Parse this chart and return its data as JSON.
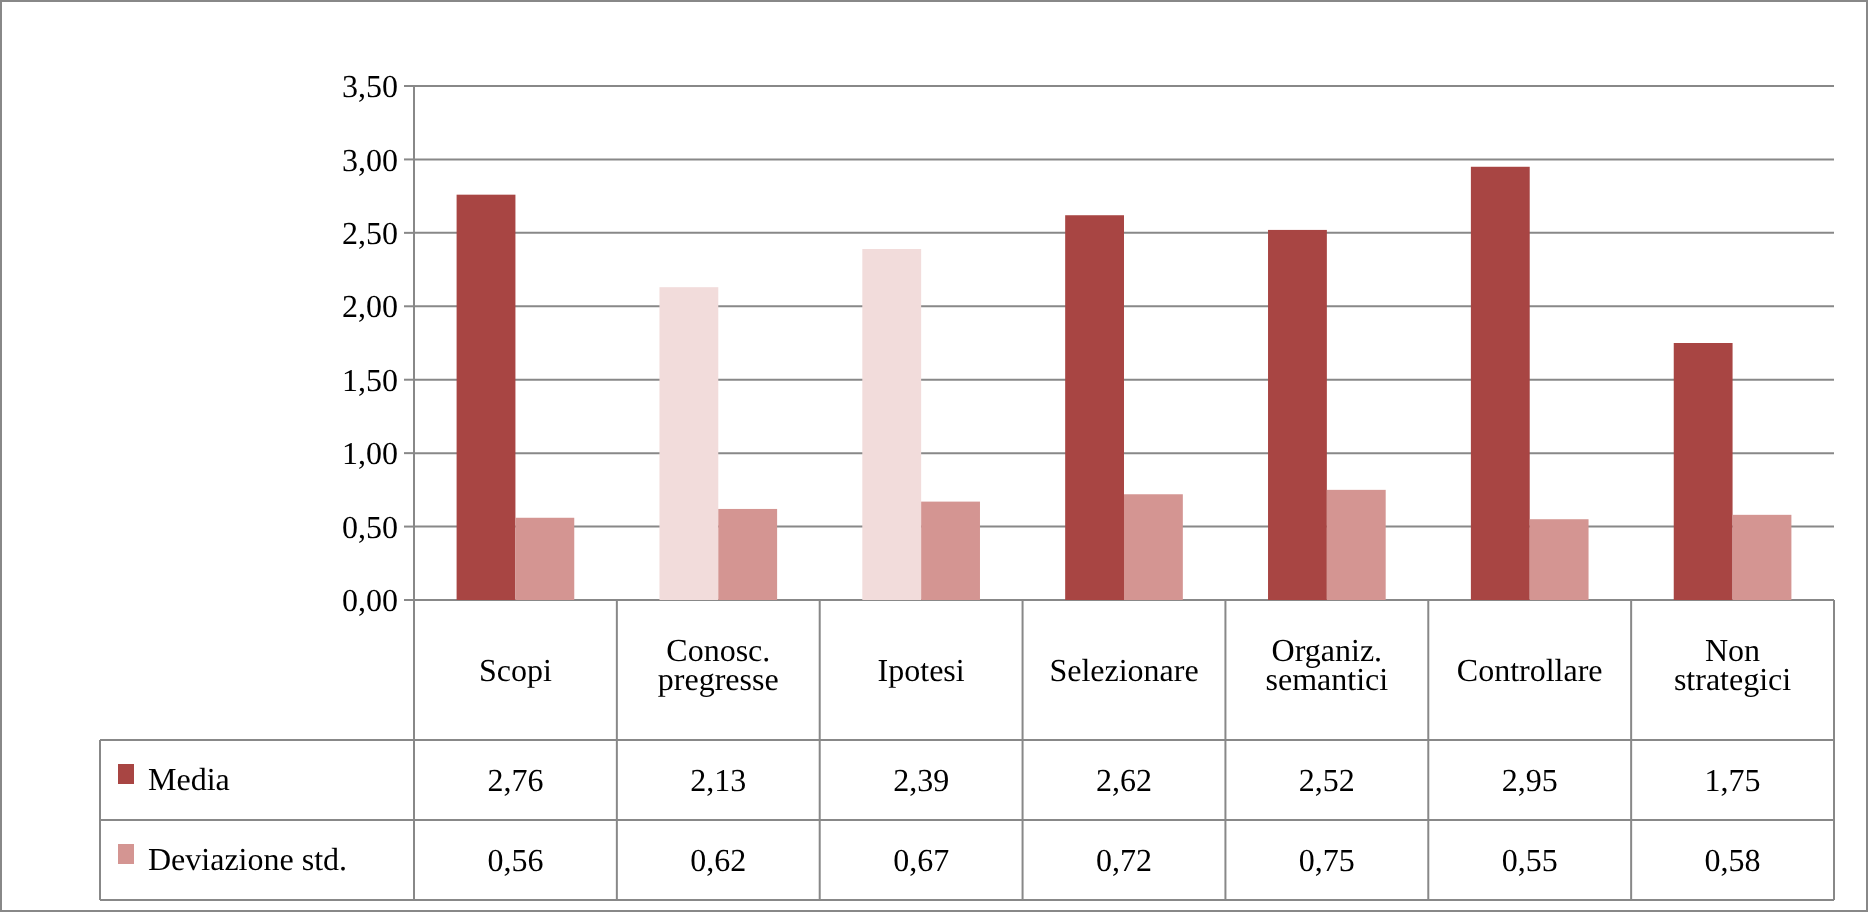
{
  "chart_data": {
    "type": "bar",
    "categories": [
      "Scopi",
      "Conosc. pregresse",
      "Ipotesi",
      "Selezionare",
      "Organiz. semantici",
      "Controllare",
      "Non strategici"
    ],
    "series": [
      {
        "name": "Media",
        "color": "#a84543",
        "colors": [
          "#a84543",
          "#f2dcdb",
          "#f2dcdb",
          "#a84543",
          "#a84543",
          "#a84543",
          "#a84543"
        ],
        "values": [
          2.76,
          2.13,
          2.39,
          2.62,
          2.52,
          2.95,
          1.75
        ],
        "value_labels": [
          "2,76",
          "2,13",
          "2,39",
          "2,62",
          "2,52",
          "2,95",
          "1,75"
        ]
      },
      {
        "name": "Deviazione std.",
        "color": "#d49592",
        "values": [
          0.56,
          0.62,
          0.67,
          0.72,
          0.75,
          0.55,
          0.58
        ],
        "value_labels": [
          "0,56",
          "0,62",
          "0,67",
          "0,72",
          "0,75",
          "0,55",
          "0,58"
        ]
      }
    ],
    "ylim": [
      0,
      3.5
    ],
    "yticks": [
      {
        "value": 0,
        "label": "0,00"
      },
      {
        "value": 0.5,
        "label": "0,50"
      },
      {
        "value": 1,
        "label": "1,00"
      },
      {
        "value": 1.5,
        "label": "1,50"
      },
      {
        "value": 2,
        "label": "2,00"
      },
      {
        "value": 2.5,
        "label": "2,50"
      },
      {
        "value": 3,
        "label": "3,00"
      },
      {
        "value": 3.5,
        "label": "3,50"
      }
    ],
    "grid": "y",
    "legend": "bottom"
  }
}
